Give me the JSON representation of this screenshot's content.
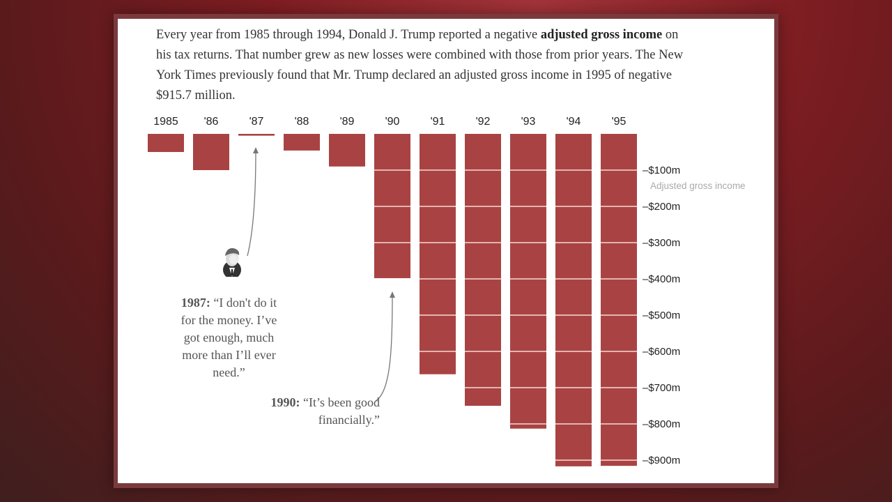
{
  "intro": {
    "part1": "Every year from 1985 through 1994, Donald J. Trump reported a negative ",
    "bold": "adjusted gross income",
    "part2": " on his tax returns. That number grew as new losses were combined with those from prior years. The New York Times previously found that Mr. Trump declared an adjusted gross income in 1995 of negative $915.7 million."
  },
  "annotations": [
    {
      "year_label": "1987:",
      "quote": "“I don't do it for the money. I’ve got enough, much more than I’ll ever need.”",
      "points_to": "'87"
    },
    {
      "year_label": "1990:",
      "quote": "“It’s been good financially.”",
      "points_to": "'90"
    }
  ],
  "colors": {
    "bar": "#a94343",
    "gridline": "#f7d9d6",
    "axis_title": "#aaaaaa"
  },
  "chart_data": {
    "type": "bar",
    "title": "",
    "xlabel": "",
    "ylabel": "Adjusted gross income",
    "categories": [
      "1985",
      "'86",
      "'87",
      "'88",
      "'89",
      "'90",
      "'91",
      "'92",
      "'93",
      "'94",
      "'95"
    ],
    "values": [
      -50,
      -100,
      -5,
      -46,
      -90,
      -398,
      -663,
      -750,
      -813,
      -917,
      -915.7
    ],
    "ylim": [
      -920,
      0
    ],
    "yticks": [
      -100,
      -200,
      -300,
      -400,
      -500,
      -600,
      -700,
      -800,
      -900
    ],
    "ytick_labels": [
      "–$100m",
      "–$200m",
      "–$300m",
      "–$400m",
      "–$500m",
      "–$600m",
      "–$700m",
      "–$800m",
      "–$900m"
    ],
    "grid": true,
    "axis_position": "right"
  }
}
